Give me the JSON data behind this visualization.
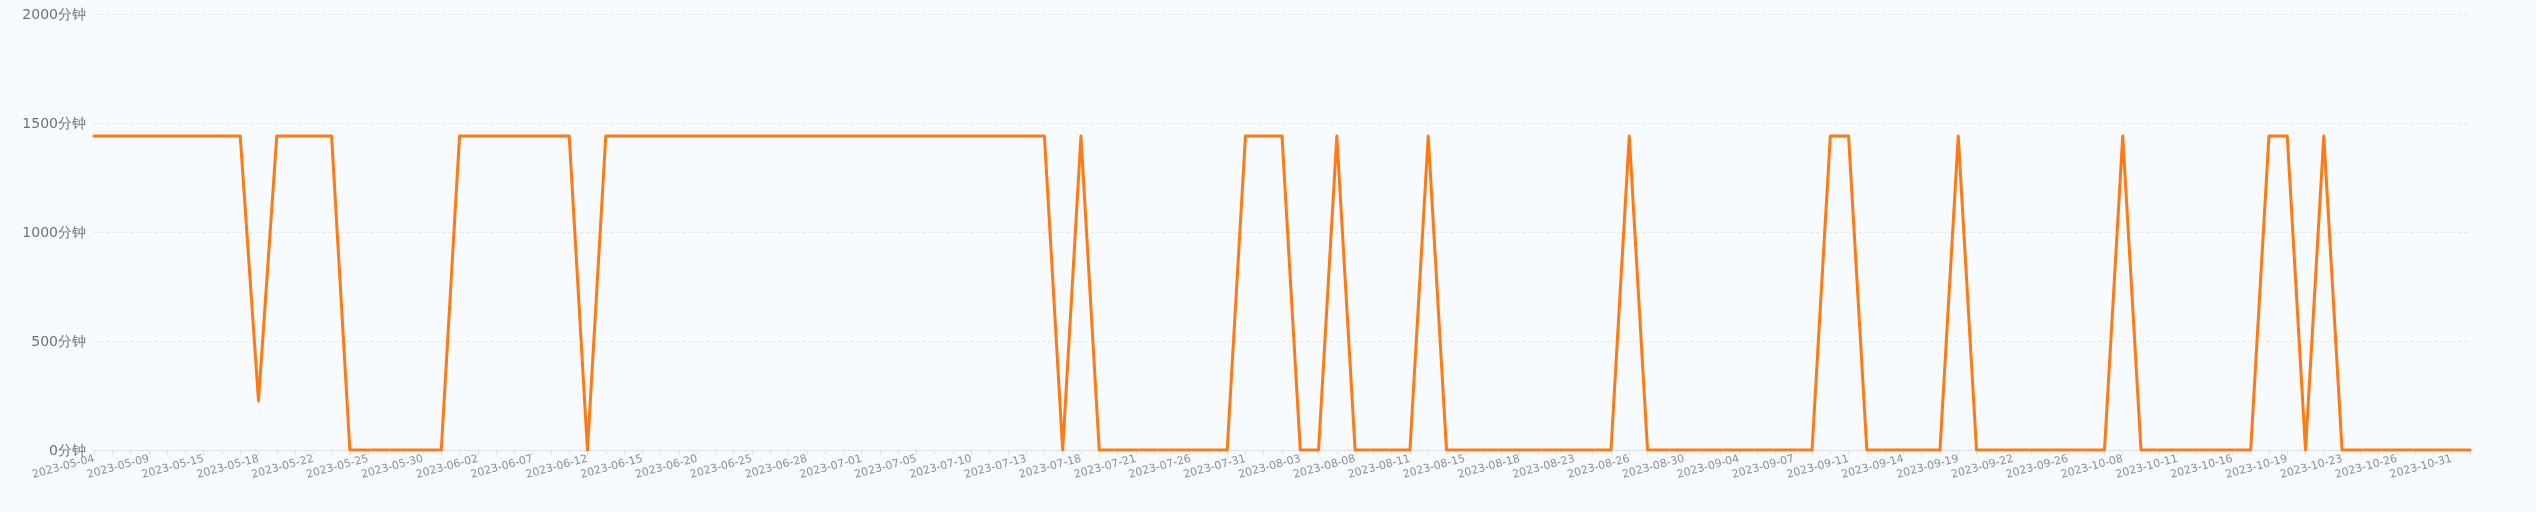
{
  "chart_data": {
    "type": "line",
    "categories": [
      "2023-05-04",
      null,
      null,
      "2023-05-09",
      null,
      null,
      "2023-05-15",
      null,
      null,
      "2023-05-18",
      null,
      null,
      "2023-05-22",
      null,
      null,
      "2023-05-25",
      null,
      null,
      "2023-05-30",
      null,
      null,
      "2023-06-02",
      null,
      null,
      "2023-06-07",
      null,
      null,
      "2023-06-12",
      null,
      null,
      "2023-06-15",
      null,
      null,
      "2023-06-20",
      null,
      null,
      "2023-06-25",
      null,
      null,
      "2023-06-28",
      null,
      null,
      "2023-07-01",
      null,
      null,
      "2023-07-05",
      null,
      null,
      "2023-07-10",
      null,
      null,
      "2023-07-13",
      null,
      null,
      "2023-07-18",
      null,
      null,
      "2023-07-21",
      null,
      null,
      "2023-07-26",
      null,
      null,
      "2023-07-31",
      null,
      null,
      "2023-08-03",
      null,
      null,
      "2023-08-08",
      null,
      null,
      "2023-08-11",
      null,
      null,
      "2023-08-15",
      null,
      null,
      "2023-08-18",
      null,
      null,
      "2023-08-23",
      null,
      null,
      "2023-08-26",
      null,
      null,
      "2023-08-30",
      null,
      null,
      "2023-09-04",
      null,
      null,
      "2023-09-07",
      null,
      null,
      "2023-09-11",
      null,
      null,
      "2023-09-14",
      null,
      null,
      "2023-09-19",
      null,
      null,
      "2023-09-22",
      null,
      null,
      "2023-09-26",
      null,
      null,
      "2023-10-08",
      null,
      null,
      "2023-10-11",
      null,
      null,
      "2023-10-16",
      null,
      null,
      "2023-10-19",
      null,
      null,
      "2023-10-23",
      null,
      null,
      "2023-10-26",
      null,
      null,
      "2023-10-31",
      null
    ],
    "series": [
      {
        "color": "#ff7a12",
        "values": [
          1440,
          1440,
          1440,
          1440,
          1440,
          1440,
          1440,
          1440,
          1440,
          225,
          1440,
          1440,
          1440,
          1440,
          0,
          0,
          0,
          0,
          0,
          0,
          1440,
          1440,
          1440,
          1440,
          1440,
          1440,
          1440,
          0,
          1440,
          1440,
          1440,
          1440,
          1440,
          1440,
          1440,
          1440,
          1440,
          1440,
          1440,
          1440,
          1440,
          1440,
          1440,
          1440,
          1440,
          1440,
          1440,
          1440,
          1440,
          1440,
          1440,
          1440,
          1440,
          0,
          1440,
          0,
          0,
          0,
          0,
          0,
          0,
          0,
          0,
          1440,
          1440,
          1440,
          0,
          0,
          1440,
          0,
          0,
          0,
          0,
          1440,
          0,
          0,
          0,
          0,
          0,
          0,
          0,
          0,
          0,
          0,
          1440,
          0,
          0,
          0,
          0,
          0,
          0,
          0,
          0,
          0,
          0,
          1440,
          1440,
          0,
          0,
          0,
          0,
          0,
          1440,
          0,
          0,
          0,
          0,
          0,
          0,
          0,
          0,
          1440,
          0,
          0,
          0,
          0,
          0,
          0,
          0,
          1440,
          1440,
          0,
          1440,
          0,
          0,
          0,
          0,
          0,
          0,
          0,
          0
        ]
      }
    ],
    "ylim": [
      0,
      2000
    ],
    "yticks": [
      {
        "value": 0,
        "label": "0分钟"
      },
      {
        "value": 500,
        "label": "500分钟"
      },
      {
        "value": 1000,
        "label": "1000分钟"
      },
      {
        "value": 1500,
        "label": "1500分钟"
      },
      {
        "value": 2000,
        "label": "2000分钟"
      }
    ],
    "grid": "y",
    "marker": "none",
    "line_style": "solid"
  }
}
